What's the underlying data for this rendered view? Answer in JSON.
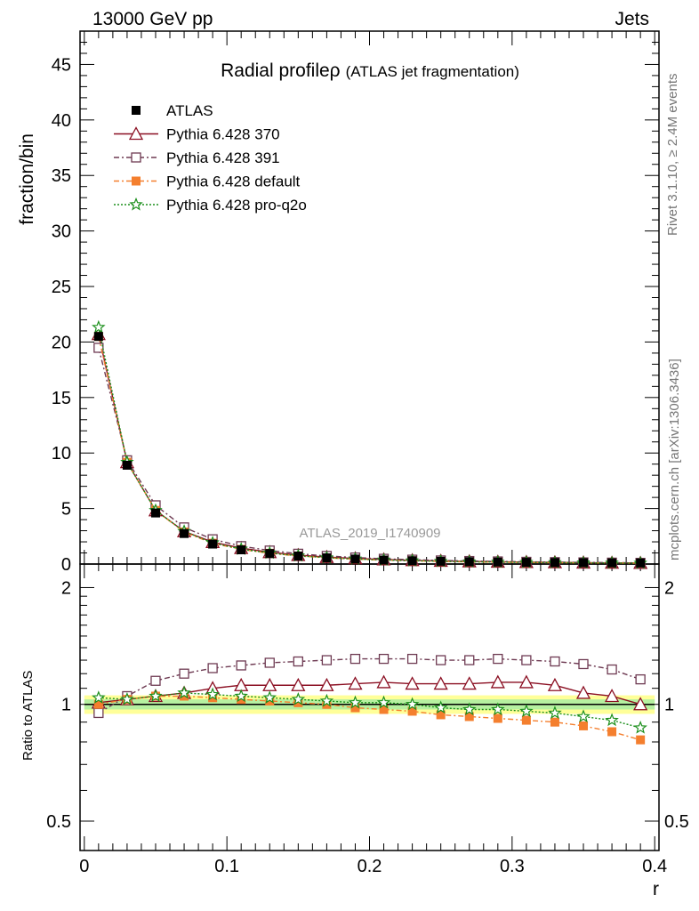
{
  "header": {
    "left": "13000 GeV pp",
    "right": "Jets"
  },
  "side_labels": {
    "rivet": "Rivet 3.1.10, ≥ 2.4M events",
    "mcplots": "mcplots.cern.ch [arXiv:1306.3436]"
  },
  "watermark": "ATLAS_2019_I1740909",
  "chart_data": {
    "type": "line",
    "title": "Radial profile",
    "title_symbol": "ρ",
    "subtitle": "(ATLAS jet fragmentation)",
    "xlabel": "r",
    "ylabel_main": "fraction/bin",
    "ylabel_ratio": "Ratio to ATLAS",
    "xlim": [
      -0.003,
      0.403
    ],
    "ylim_main": [
      0,
      48
    ],
    "ylim_ratio": [
      0.42,
      2.3
    ],
    "ratio_log_scale": true,
    "x_ticks": [
      "0",
      "0.1",
      "0.2",
      "0.3",
      "0.4"
    ],
    "y_ticks_main": [
      "0",
      "5",
      "10",
      "15",
      "20",
      "25",
      "30",
      "35",
      "40",
      "45"
    ],
    "y_ticks_ratio": [
      "0.5",
      "1",
      "2"
    ],
    "x": [
      0.01,
      0.03,
      0.05,
      0.07,
      0.09,
      0.11,
      0.13,
      0.15,
      0.17,
      0.19,
      0.21,
      0.23,
      0.25,
      0.27,
      0.29,
      0.31,
      0.33,
      0.35,
      0.37,
      0.39
    ],
    "data_series": {
      "name": "ATLAS",
      "values": [
        20.5,
        8.9,
        4.6,
        2.75,
        1.8,
        1.28,
        0.95,
        0.72,
        0.56,
        0.45,
        0.36,
        0.3,
        0.25,
        0.21,
        0.18,
        0.155,
        0.135,
        0.118,
        0.104,
        0.092
      ],
      "band_inner": 0.03,
      "band_outer": 0.055
    },
    "series": [
      {
        "name": "Pythia 6.428 370",
        "color": "#8b0f22",
        "marker": "triangle-open",
        "dash": "",
        "ratio": [
          1.01,
          1.03,
          1.05,
          1.07,
          1.1,
          1.12,
          1.12,
          1.12,
          1.12,
          1.13,
          1.14,
          1.13,
          1.13,
          1.13,
          1.14,
          1.14,
          1.12,
          1.07,
          1.05,
          1.0
        ]
      },
      {
        "name": "Pythia 6.428 391",
        "color": "#6e3a52",
        "marker": "square-open",
        "dash": "6,3,2,3",
        "ratio": [
          0.95,
          1.05,
          1.15,
          1.2,
          1.24,
          1.26,
          1.28,
          1.29,
          1.3,
          1.31,
          1.31,
          1.31,
          1.3,
          1.3,
          1.31,
          1.3,
          1.29,
          1.27,
          1.23,
          1.16
        ]
      },
      {
        "name": "Pythia 6.428 default",
        "color": "#f47f2e",
        "marker": "square-filled",
        "dash": "6,3,2,3",
        "ratio": [
          1.0,
          1.03,
          1.05,
          1.05,
          1.04,
          1.03,
          1.02,
          1.01,
          1.0,
          0.98,
          0.97,
          0.96,
          0.94,
          0.93,
          0.92,
          0.91,
          0.9,
          0.88,
          0.85,
          0.81
        ]
      },
      {
        "name": "Pythia 6.428 pro-q2o",
        "color": "#1b8f1b",
        "marker": "star-open",
        "dash": "2,2",
        "ratio": [
          1.04,
          1.03,
          1.05,
          1.07,
          1.06,
          1.05,
          1.04,
          1.03,
          1.02,
          1.01,
          1.01,
          1.0,
          0.98,
          0.97,
          0.97,
          0.96,
          0.95,
          0.93,
          0.91,
          0.87
        ]
      }
    ]
  }
}
